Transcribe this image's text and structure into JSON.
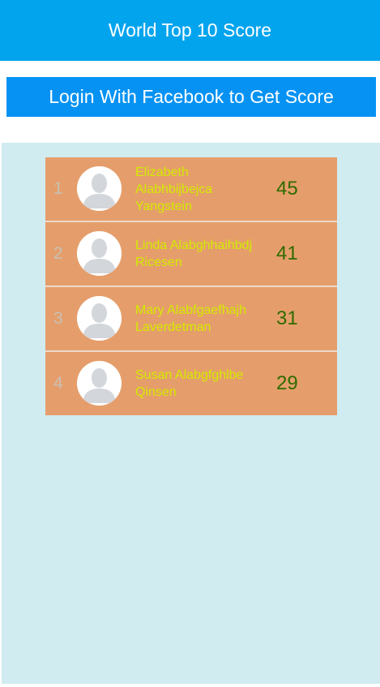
{
  "header": {
    "title": "World Top 10 Score"
  },
  "login": {
    "label": "Login With Facebook to Get Score"
  },
  "leaderboard": {
    "rows": [
      {
        "rank": "1",
        "name": "Elizabeth Alabhbijbejca Yangstein",
        "score": "45",
        "avatar_icon": "default-user-avatar-icon"
      },
      {
        "rank": "2",
        "name": "Linda Alabghhaihbdj Ricesen",
        "score": "41",
        "avatar_icon": "default-user-avatar-icon"
      },
      {
        "rank": "3",
        "name": "Mary Alabfgaefhajh Laverdetman",
        "score": "31",
        "avatar_icon": "default-user-avatar-icon"
      },
      {
        "rank": "4",
        "name": "Susan Alabgfghlbe Qinsen",
        "score": "29",
        "avatar_icon": "default-user-avatar-icon"
      }
    ]
  },
  "colors": {
    "header_bg": "#03a4ee",
    "button_bg": "#0592f3",
    "panel_bg": "#d0ecf0",
    "row_bg": "#e59e6b",
    "name_color": "#d4ea00",
    "score_color": "#2e6b00"
  }
}
